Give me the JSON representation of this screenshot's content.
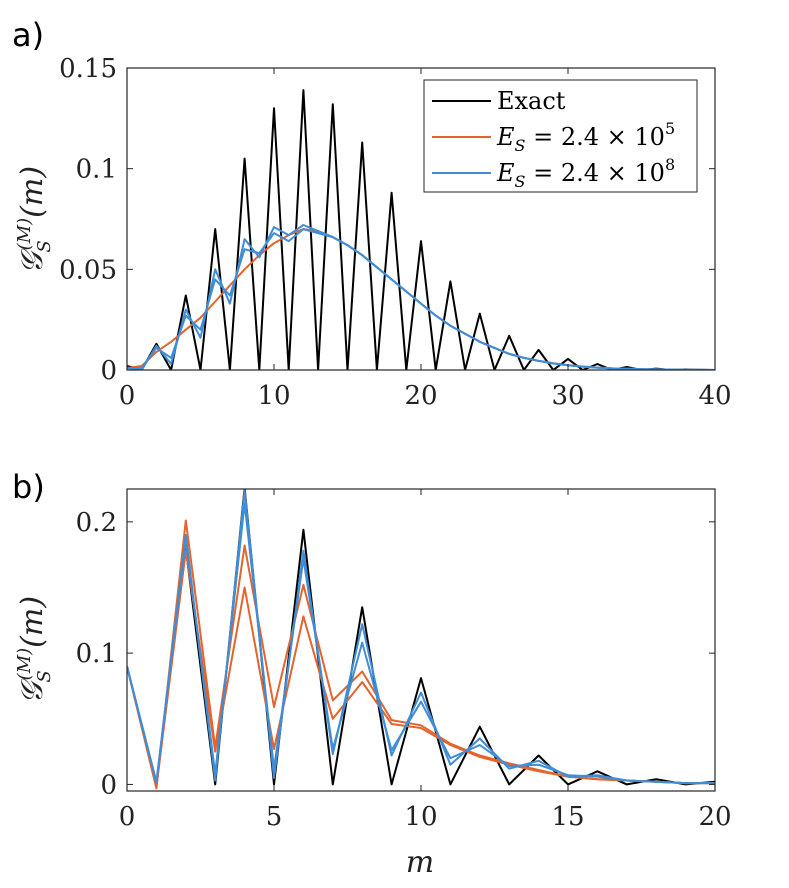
{
  "chart_data": [
    {
      "type": "line",
      "panel_label": "a)",
      "xlabel": "",
      "ylabel": {
        "main": "𝒢",
        "sub": "S",
        "sup": "(M)",
        "arg": "(m)"
      },
      "xlim": [
        0,
        40
      ],
      "ylim": [
        0,
        0.15
      ],
      "xticks": [
        "0",
        "10",
        "20",
        "30",
        "40"
      ],
      "xtick_values": [
        0,
        10,
        20,
        30,
        40
      ],
      "yticks": [
        "0",
        "0.05",
        "0.1",
        "0.15"
      ],
      "ytick_values": [
        0,
        0.05,
        0.1,
        0.15
      ],
      "legend_position": "top-right",
      "series": [
        {
          "name": "Exact",
          "color": "#000000",
          "x": [
            0,
            1,
            2,
            3,
            4,
            5,
            6,
            7,
            8,
            9,
            10,
            11,
            12,
            13,
            14,
            15,
            16,
            17,
            18,
            19,
            20,
            21,
            22,
            23,
            24,
            25,
            26,
            27,
            28,
            29,
            30,
            31,
            32,
            33,
            34,
            35,
            36,
            37,
            38,
            39,
            40
          ],
          "values": [
            0.002,
            0,
            0.013,
            0,
            0.037,
            0,
            0.07,
            0,
            0.105,
            0,
            0.13,
            0,
            0.139,
            0,
            0.132,
            0,
            0.113,
            0,
            0.088,
            0,
            0.064,
            0,
            0.044,
            0,
            0.028,
            0,
            0.017,
            0,
            0.01,
            0,
            0.0055,
            0,
            0.003,
            0,
            0.0015,
            0,
            0.0007,
            0,
            0.0003,
            0,
            0
          ]
        },
        {
          "name": "E_S = 2.4 × 10^5",
          "color": "#e6632b",
          "x": [
            0,
            1,
            2,
            3,
            4,
            5,
            6,
            7,
            8,
            9,
            10,
            11,
            12,
            13,
            14,
            15,
            16,
            17,
            18,
            19,
            20,
            21,
            22,
            23,
            24,
            25,
            26,
            27,
            28,
            29,
            30,
            31,
            32,
            33,
            34,
            35,
            36,
            37,
            38,
            39,
            40
          ],
          "values": [
            0.001,
            0.002,
            0.009,
            0.014,
            0.02,
            0.026,
            0.034,
            0.042,
            0.05,
            0.057,
            0.063,
            0.067,
            0.07,
            0.069,
            0.066,
            0.062,
            0.057,
            0.051,
            0.045,
            0.039,
            0.033,
            0.027,
            0.022,
            0.018,
            0.014,
            0.011,
            0.008,
            0.006,
            0.0045,
            0.0033,
            0.0024,
            0.0017,
            0.0012,
            0.0008,
            0.0006,
            0.0004,
            0.0003,
            0.0002,
            0.0001,
            0.0001,
            0
          ]
        },
        {
          "name": "E_S = 2.4 × 10^8",
          "color": "#3f8dd6",
          "x": [
            0,
            1,
            2,
            3,
            4,
            5,
            6,
            7,
            8,
            9,
            10,
            11,
            12,
            13,
            14,
            15,
            16,
            17,
            18,
            19,
            20,
            21,
            22,
            23,
            24,
            25,
            26,
            27,
            28,
            29,
            30,
            31,
            32,
            33,
            34,
            35,
            36,
            37,
            38,
            39,
            40
          ],
          "values": [
            0.001,
            0,
            0.012,
            0.003,
            0.03,
            0.016,
            0.05,
            0.033,
            0.065,
            0.056,
            0.071,
            0.067,
            0.072,
            0.069,
            0.066,
            0.062,
            0.057,
            0.051,
            0.045,
            0.039,
            0.033,
            0.027,
            0.022,
            0.018,
            0.014,
            0.011,
            0.008,
            0.006,
            0.0045,
            0.0033,
            0.0024,
            0.0017,
            0.0012,
            0.0008,
            0.0006,
            0.0004,
            0.0003,
            0.0002,
            0.0001,
            0.0001,
            0
          ]
        },
        {
          "name": "E_S = 2.4 × 10^8 (second trace)",
          "color": "#3f8dd6",
          "x": [
            0,
            1,
            2,
            3,
            4,
            5,
            6,
            7,
            8,
            9,
            10,
            11,
            12,
            13,
            14,
            15,
            16,
            17,
            18,
            19,
            20,
            21,
            22,
            23,
            24,
            25,
            26,
            27,
            28,
            29,
            30,
            31,
            32,
            33,
            34,
            35,
            36,
            37,
            38,
            39,
            40
          ],
          "values": [
            0.001,
            0.001,
            0.011,
            0.006,
            0.027,
            0.02,
            0.045,
            0.037,
            0.06,
            0.058,
            0.068,
            0.064,
            0.07,
            0.068,
            0.066,
            0.062,
            0.057,
            0.051,
            0.045,
            0.039,
            0.033,
            0.027,
            0.022,
            0.018,
            0.014,
            0.011,
            0.008,
            0.006,
            0.0045,
            0.0033,
            0.0024,
            0.0017,
            0.0012,
            0.0008,
            0.0006,
            0.0004,
            0.0003,
            0.0002,
            0.0001,
            0.0001,
            0
          ]
        }
      ],
      "legend": [
        {
          "label": "Exact",
          "color": "#000000",
          "math": false
        },
        {
          "prefix": "E",
          "sub": "S",
          "middle": " = 2.4 × 10",
          "sup": "5",
          "color": "#e6632b",
          "math": true
        },
        {
          "prefix": "E",
          "sub": "S",
          "middle": " = 2.4 × 10",
          "sup": "8",
          "color": "#3f8dd6",
          "math": true
        }
      ]
    },
    {
      "type": "line",
      "panel_label": "b)",
      "xlabel": "m",
      "ylabel": {
        "main": "𝒢",
        "sub": "S",
        "sup": "(M)",
        "arg": "(m)"
      },
      "xlim": [
        0,
        20
      ],
      "ylim": [
        -0.005,
        0.225
      ],
      "xticks": [
        "0",
        "5",
        "10",
        "15",
        "20"
      ],
      "xtick_values": [
        0,
        5,
        10,
        15,
        20
      ],
      "yticks": [
        "0",
        "0.1",
        "0.2"
      ],
      "ytick_values": [
        0,
        0.1,
        0.2
      ],
      "series": [
        {
          "name": "Exact",
          "color": "#000000",
          "x": [
            0,
            1,
            2,
            3,
            4,
            5,
            6,
            7,
            8,
            9,
            10,
            11,
            12,
            13,
            14,
            15,
            16,
            17,
            18,
            19,
            20
          ],
          "values": [
            0.09,
            0,
            0.18,
            0,
            0.226,
            0,
            0.194,
            0,
            0.135,
            0,
            0.081,
            0,
            0.044,
            0,
            0.022,
            0,
            0.01,
            0,
            0.004,
            0,
            0.002
          ]
        },
        {
          "name": "E_S = 2.4 × 10^5",
          "color": "#e6632b",
          "x": [
            0,
            1,
            2,
            3,
            4,
            5,
            6,
            7,
            8,
            9,
            10,
            11,
            12,
            13,
            14,
            15,
            16,
            17,
            18,
            19,
            20
          ],
          "values": [
            0.09,
            -0.003,
            0.201,
            0.028,
            0.182,
            0.059,
            0.152,
            0.064,
            0.086,
            0.049,
            0.045,
            0.031,
            0.022,
            0.016,
            0.011,
            0.006,
            0.004,
            0.003,
            0.002,
            0.001,
            0.001
          ]
        },
        {
          "name": "E_S = 2.4 × 10^5 (second trace)",
          "color": "#e6632b",
          "x": [
            0,
            1,
            2,
            3,
            4,
            5,
            6,
            7,
            8,
            9,
            10,
            11,
            12,
            13,
            14,
            15,
            16,
            17,
            18,
            19,
            20
          ],
          "values": [
            0.09,
            -0.002,
            0.178,
            0.025,
            0.15,
            0.027,
            0.128,
            0.05,
            0.078,
            0.046,
            0.043,
            0.03,
            0.021,
            0.015,
            0.01,
            0.006,
            0.004,
            0.003,
            0.002,
            0.001,
            0.001
          ]
        },
        {
          "name": "E_S = 2.4 × 10^8",
          "color": "#3f8dd6",
          "x": [
            0,
            1,
            2,
            3,
            4,
            5,
            6,
            7,
            8,
            9,
            10,
            11,
            12,
            13,
            14,
            15,
            16,
            17,
            18,
            19,
            20
          ],
          "values": [
            0.09,
            0.001,
            0.19,
            0.003,
            0.224,
            0.005,
            0.178,
            0.023,
            0.122,
            0.022,
            0.07,
            0.015,
            0.035,
            0.012,
            0.018,
            0.006,
            0.007,
            0.003,
            0.002,
            0.001,
            0.001
          ]
        },
        {
          "name": "E_S = 2.4 × 10^8 (second trace)",
          "color": "#3f8dd6",
          "x": [
            0,
            1,
            2,
            3,
            4,
            5,
            6,
            7,
            8,
            9,
            10,
            11,
            12,
            13,
            14,
            15,
            16,
            17,
            18,
            19,
            20
          ],
          "values": [
            0.09,
            0.002,
            0.186,
            0.008,
            0.214,
            0.012,
            0.172,
            0.027,
            0.108,
            0.026,
            0.063,
            0.02,
            0.03,
            0.014,
            0.015,
            0.007,
            0.006,
            0.003,
            0.002,
            0.001,
            0.001
          ]
        }
      ]
    }
  ]
}
